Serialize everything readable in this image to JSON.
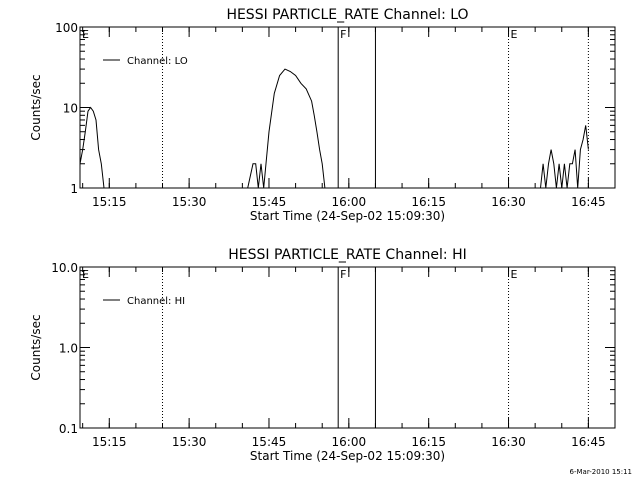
{
  "chart_data": [
    {
      "type": "line",
      "title": "HESSI PARTICLE_RATE Channel: LO",
      "xlabel": "Start Time (24-Sep-02 15:09:30)",
      "ylabel": "Counts/sec",
      "y_scale": "log",
      "ylim": [
        1,
        100
      ],
      "y_ticks": [
        {
          "value": 1,
          "label": "1"
        },
        {
          "value": 10,
          "label": "10"
        },
        {
          "value": 100,
          "label": "100"
        }
      ],
      "xlim": [
        "15:09:30",
        "16:50:00"
      ],
      "x_ticks": [
        "15:15",
        "15:30",
        "15:45",
        "16:00",
        "16:15",
        "16:30",
        "16:45"
      ],
      "legend": {
        "position": "top-left",
        "entries": [
          "Channel: LO"
        ]
      },
      "grid": false,
      "annotations": [
        {
          "label": "E",
          "time": "15:09:30",
          "style": "none"
        },
        {
          "label": "",
          "time": "15:25:00",
          "style": "dotted"
        },
        {
          "label": "F",
          "time": "15:58:00",
          "style": "solid"
        },
        {
          "label": "",
          "time": "16:05:00",
          "style": "solid"
        },
        {
          "label": "E",
          "time": "16:30:00",
          "style": "dotted"
        },
        {
          "label": "",
          "time": "16:45:00",
          "style": "dotted"
        }
      ],
      "series": [
        {
          "name": "Channel: LO",
          "x": [
            "15:09:30",
            "15:10:00",
            "15:10:30",
            "15:11:00",
            "15:11:30",
            "15:12:00",
            "15:12:30",
            "15:13:00",
            "15:13:30",
            "15:14:00",
            "15:41:00",
            "15:42:00",
            "15:42:30",
            "15:43:00",
            "15:43:30",
            "15:44:00",
            "15:45:00",
            "15:46:00",
            "15:47:00",
            "15:48:00",
            "15:49:00",
            "15:50:00",
            "15:51:00",
            "15:52:00",
            "15:53:00",
            "15:53:30",
            "15:54:00",
            "15:54:30",
            "15:55:00",
            "15:55:30",
            "16:36:00",
            "16:36:30",
            "16:37:00",
            "16:37:30",
            "16:38:00",
            "16:38:30",
            "16:39:00",
            "16:39:30",
            "16:40:00",
            "16:40:30",
            "16:41:00",
            "16:41:30",
            "16:42:00",
            "16:42:30",
            "16:43:00",
            "16:43:30",
            "16:44:00",
            "16:44:30",
            "16:45:00"
          ],
          "y": [
            2,
            3,
            5,
            9,
            10,
            9,
            7,
            3,
            2,
            1,
            1,
            2,
            2,
            1,
            2,
            1,
            5,
            15,
            25,
            30,
            28,
            25,
            20,
            17,
            12,
            8,
            5,
            3,
            2,
            1,
            1,
            2,
            1,
            2,
            3,
            2,
            1,
            2,
            1,
            2,
            1,
            2,
            2,
            3,
            1,
            3,
            4,
            6,
            3
          ]
        }
      ]
    },
    {
      "type": "line",
      "title": "HESSI PARTICLE_RATE Channel: HI",
      "xlabel": "Start Time (24-Sep-02 15:09:30)",
      "ylabel": "Counts/sec",
      "y_scale": "log",
      "ylim": [
        0.1,
        10
      ],
      "y_ticks": [
        {
          "value": 0.1,
          "label": "0.1"
        },
        {
          "value": 1,
          "label": "1.0"
        },
        {
          "value": 10,
          "label": "10.0"
        }
      ],
      "xlim": [
        "15:09:30",
        "16:50:00"
      ],
      "x_ticks": [
        "15:15",
        "15:30",
        "15:45",
        "16:00",
        "16:15",
        "16:30",
        "16:45"
      ],
      "legend": {
        "position": "top-left",
        "entries": [
          "Channel: HI"
        ]
      },
      "grid": false,
      "annotations": [
        {
          "label": "E",
          "time": "15:09:30",
          "style": "none"
        },
        {
          "label": "",
          "time": "15:25:00",
          "style": "dotted"
        },
        {
          "label": "F",
          "time": "15:58:00",
          "style": "solid"
        },
        {
          "label": "",
          "time": "16:05:00",
          "style": "solid"
        },
        {
          "label": "E",
          "time": "16:30:00",
          "style": "dotted"
        },
        {
          "label": "",
          "time": "16:45:00",
          "style": "dotted"
        }
      ],
      "series": [
        {
          "name": "Channel: HI",
          "x": [],
          "y": []
        }
      ]
    }
  ],
  "footer": {
    "date_stamp": "6-Mar-2010 15:11"
  }
}
